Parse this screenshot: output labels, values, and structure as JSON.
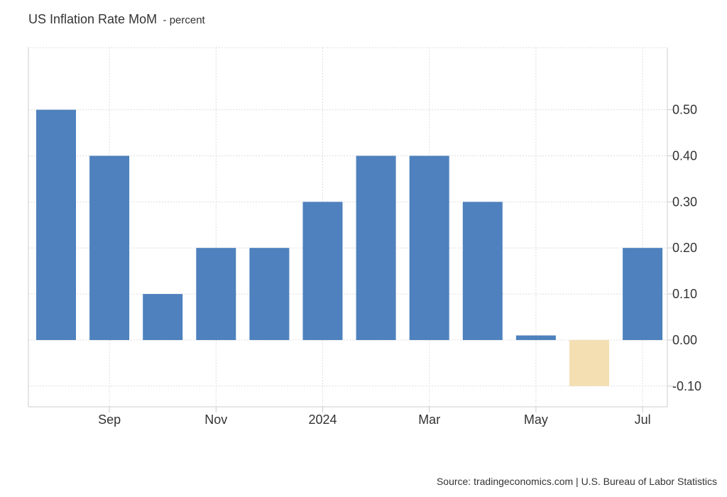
{
  "chart_data": {
    "type": "bar",
    "title": "US Inflation Rate MoM",
    "subtitle": "- percent",
    "source": "Source: tradingeconomics.com | U.S. Bureau of Labor Statistics",
    "categories": [
      "2023-08",
      "2023-09",
      "2023-10",
      "2023-11",
      "2023-12",
      "2024-01",
      "2024-02",
      "2024-03",
      "2024-04",
      "2024-05",
      "2024-06",
      "2024-07"
    ],
    "values": [
      0.5,
      0.4,
      0.1,
      0.2,
      0.2,
      0.3,
      0.4,
      0.4,
      0.3,
      0.01,
      -0.1,
      0.2
    ],
    "x_tick_labels": [
      {
        "label": "Sep",
        "category": "2023-09"
      },
      {
        "label": "Nov",
        "category": "2023-11"
      },
      {
        "label": "2024",
        "category": "2024-01"
      },
      {
        "label": "Mar",
        "category": "2024-03"
      },
      {
        "label": "May",
        "category": "2024-05"
      },
      {
        "label": "Jul",
        "category": "2024-07"
      }
    ],
    "y_ticks": [
      0.5,
      0.4,
      0.3,
      0.2,
      0.1,
      0.0,
      -0.1
    ],
    "y_tick_labels": [
      "0.50",
      "0.40",
      "0.30",
      "0.20",
      "0.10",
      "0.00",
      "-0.10"
    ],
    "ylim": [
      -0.145,
      0.635
    ],
    "y_axis_position": "right",
    "grid": true,
    "colors": {
      "positive": "#4e81bd",
      "negative": "#f4dfb3",
      "grid": "#dddddd"
    }
  }
}
